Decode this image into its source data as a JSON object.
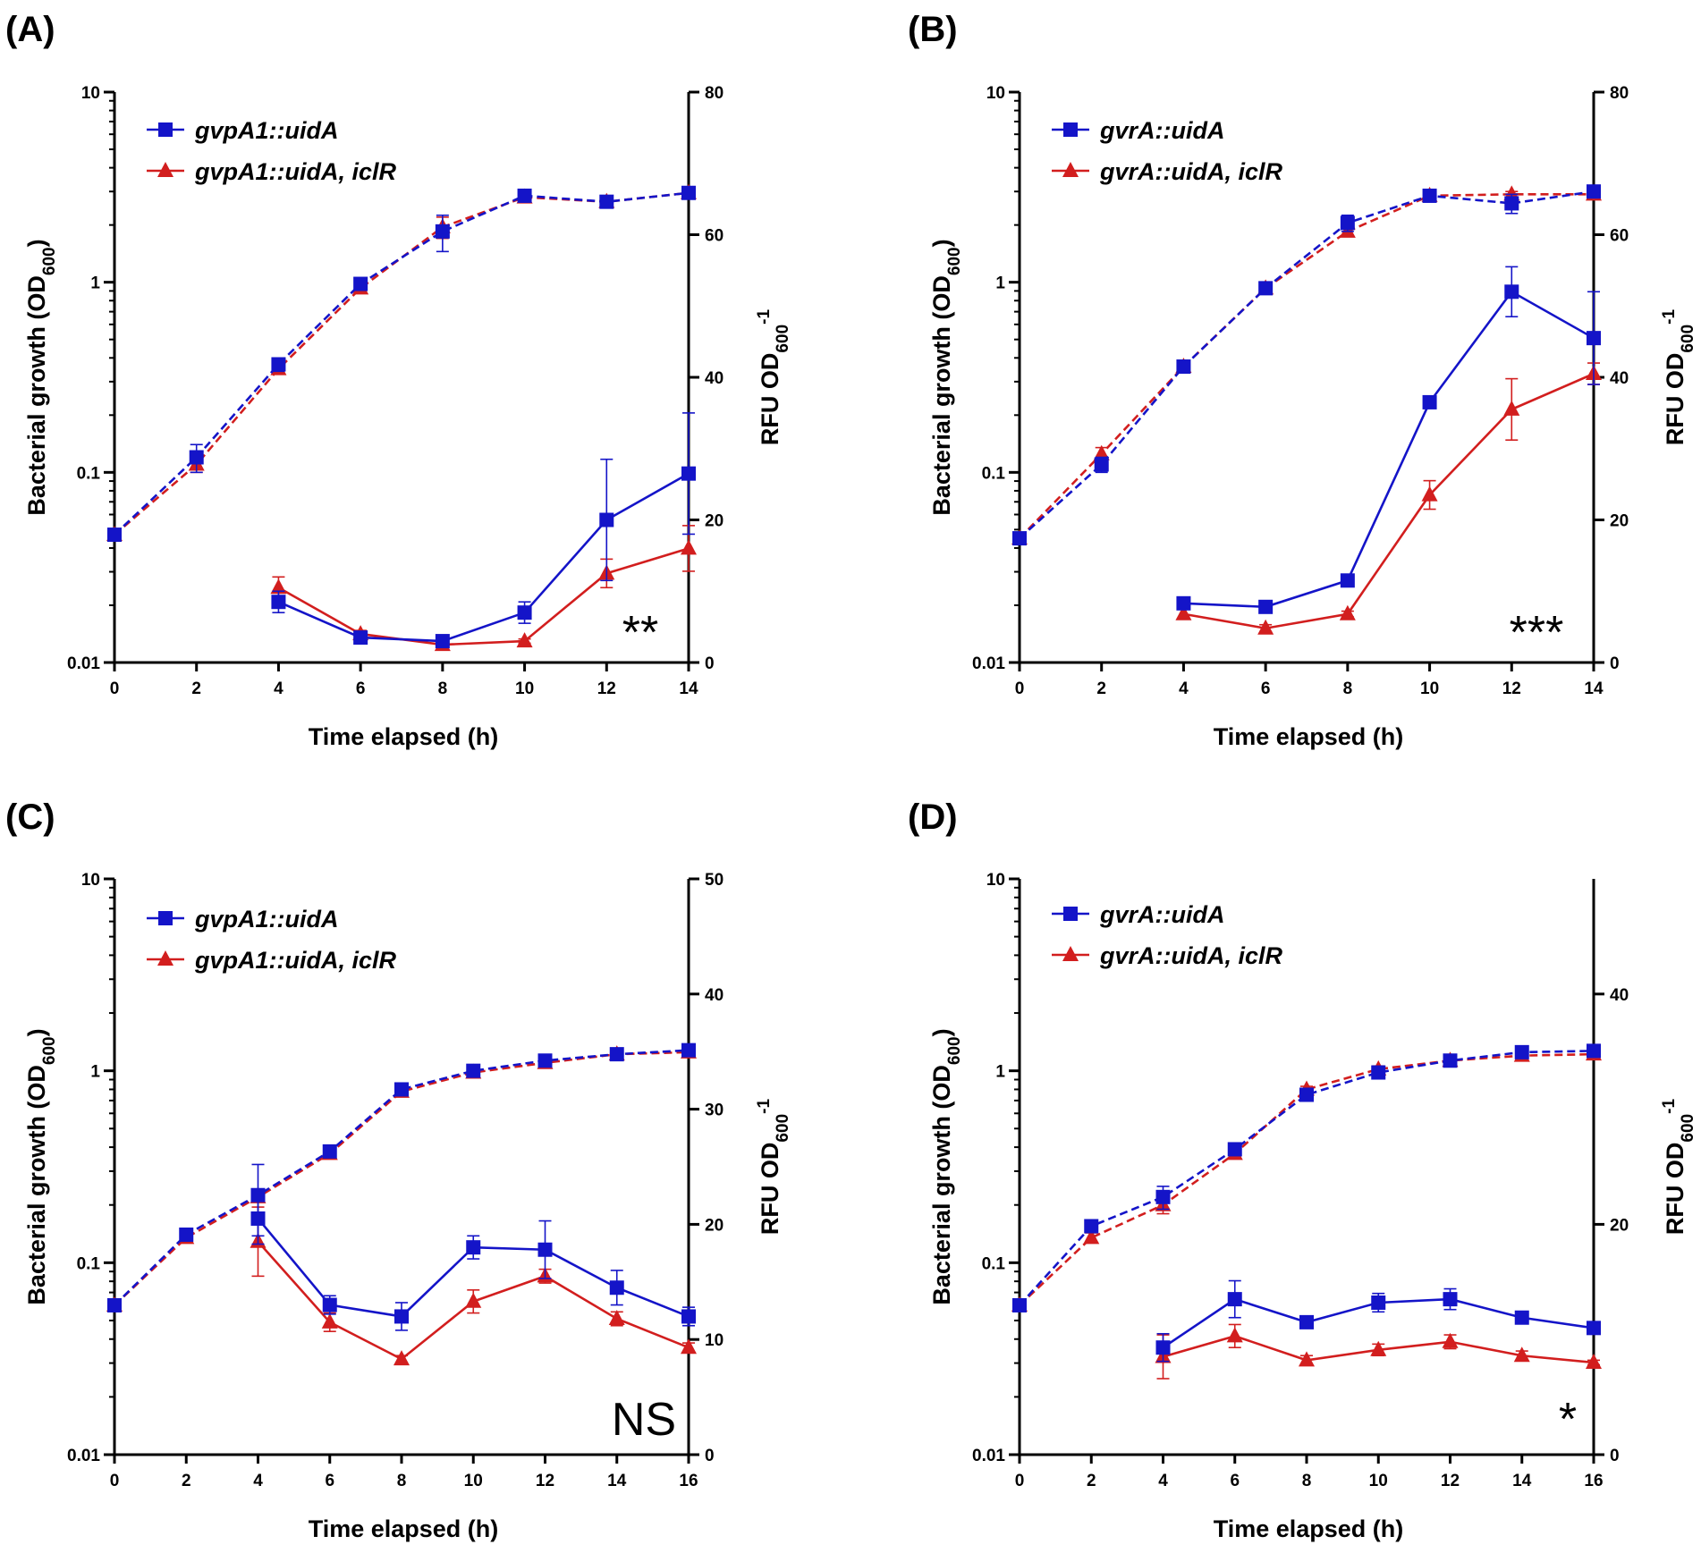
{
  "colors": {
    "gene": "#1414c8",
    "iclr": "#d21e1e",
    "axis": "#000000"
  },
  "chart_data": [
    {
      "panel": "(A)",
      "type": "line",
      "xlabel": "Time elapsed (h)",
      "ylabel_left": "Bacterial growth (OD",
      "ylabel_left_sub": "600",
      "ylabel_left_end": ")",
      "ylabel_right": "RFU OD",
      "ylabel_right_sub": "600",
      "ylabel_right_sup": "-1",
      "x_ticks": [
        0,
        2,
        4,
        6,
        8,
        10,
        12,
        14
      ],
      "x_range": [
        0,
        14
      ],
      "y_left_scale": "log",
      "y_left_range": [
        0.01,
        10
      ],
      "y_left_ticks": [
        "0.01",
        "0.1",
        "1",
        "10"
      ],
      "y_right_range": [
        0,
        80
      ],
      "y_right_ticks": [
        0,
        20,
        40,
        60,
        80
      ],
      "significance": "**",
      "legend": [
        "gvpA1::uidA",
        "gvpA1::uidA, iclR"
      ],
      "series": [
        {
          "name": "gvpA1::uidA",
          "axis": "left",
          "style": "dashed",
          "marker": "square",
          "color_key": "gene",
          "x": [
            0,
            2,
            4,
            6,
            8,
            10,
            12,
            14
          ],
          "values": [
            0.047,
            0.12,
            0.37,
            0.98,
            1.85,
            2.85,
            2.65,
            2.95
          ],
          "err": [
            0.003,
            0.02,
            0.03,
            0.05,
            0.4,
            0.15,
            0.15,
            0.1
          ]
        },
        {
          "name": "gvpA1::uidA, iclR",
          "axis": "left",
          "style": "dashed",
          "marker": "triangle",
          "color_key": "iclr",
          "x": [
            0,
            2,
            4,
            6,
            8,
            10,
            12,
            14
          ],
          "values": [
            0.047,
            0.11,
            0.35,
            0.93,
            1.95,
            2.8,
            2.65,
            2.95
          ],
          "err": [
            0.003,
            0.01,
            0.02,
            0.04,
            0.25,
            0.1,
            0.1,
            0.1
          ]
        },
        {
          "name": "gvpA1::uidA",
          "axis": "right",
          "style": "solid",
          "marker": "square",
          "color_key": "gene",
          "x": [
            4,
            6,
            8,
            10,
            12,
            14
          ],
          "values": [
            8.5,
            3.5,
            3.0,
            7.0,
            20,
            26.5
          ],
          "err": [
            1.5,
            0.6,
            0.6,
            1.5,
            8.5,
            8.5
          ]
        },
        {
          "name": "gvpA1::uidA, iclR",
          "axis": "right",
          "style": "solid",
          "marker": "triangle",
          "color_key": "iclr",
          "x": [
            4,
            6,
            8,
            10,
            12,
            14
          ],
          "values": [
            10.5,
            4.0,
            2.5,
            3.0,
            12.5,
            16
          ],
          "err": [
            1.5,
            0.5,
            0.6,
            0.3,
            2,
            3.2
          ]
        }
      ]
    },
    {
      "panel": "(B)",
      "type": "line",
      "xlabel": "Time elapsed (h)",
      "ylabel_left": "Bacterial growth (OD",
      "ylabel_left_sub": "600",
      "ylabel_left_end": ")",
      "ylabel_right": "RFU OD",
      "ylabel_right_sub": "600",
      "ylabel_right_sup": "-1",
      "x_ticks": [
        0,
        2,
        4,
        6,
        8,
        10,
        12,
        14
      ],
      "x_range": [
        0,
        14
      ],
      "y_left_scale": "log",
      "y_left_range": [
        0.01,
        10
      ],
      "y_left_ticks": [
        "0.01",
        "0.1",
        "1",
        "10"
      ],
      "y_right_range": [
        0,
        80
      ],
      "y_right_ticks": [
        0,
        20,
        40,
        60,
        80
      ],
      "significance": "***",
      "legend": [
        "gvrA::uidA",
        "gvrA::uidA, iclR"
      ],
      "series": [
        {
          "name": "gvrA::uidA",
          "axis": "left",
          "style": "dashed",
          "marker": "square",
          "color_key": "gene",
          "x": [
            0,
            2,
            4,
            6,
            8,
            10,
            12,
            14
          ],
          "values": [
            0.045,
            0.11,
            0.36,
            0.93,
            2.05,
            2.85,
            2.6,
            3.0
          ],
          "err": [
            0.003,
            0.01,
            0.02,
            0.04,
            0.2,
            0.1,
            0.3,
            0.1
          ]
        },
        {
          "name": "gvrA::uidA, iclR",
          "axis": "left",
          "style": "dashed",
          "marker": "triangle",
          "color_key": "iclr",
          "x": [
            0,
            2,
            4,
            6,
            8,
            10,
            12,
            14
          ],
          "values": [
            0.045,
            0.125,
            0.36,
            0.93,
            1.85,
            2.85,
            2.9,
            2.9
          ],
          "err": [
            0.003,
            0.01,
            0.02,
            0.04,
            0.1,
            0.1,
            0.1,
            0.1
          ]
        },
        {
          "name": "gvrA::uidA",
          "axis": "right",
          "style": "solid",
          "marker": "square",
          "color_key": "gene",
          "x": [
            4,
            6,
            8,
            10,
            12,
            14
          ],
          "values": [
            8.3,
            7.8,
            11.5,
            36.5,
            52,
            45.5
          ],
          "err": [
            0.8,
            0.4,
            0.5,
            0.5,
            3.5,
            6.5
          ]
        },
        {
          "name": "gvrA::uidA, iclR",
          "axis": "right",
          "style": "solid",
          "marker": "triangle",
          "color_key": "iclr",
          "x": [
            4,
            6,
            8,
            10,
            12,
            14
          ],
          "values": [
            6.8,
            4.8,
            6.8,
            23.5,
            35.5,
            40.5
          ],
          "err": [
            0.7,
            0.5,
            0.4,
            2,
            4.3,
            1.5
          ]
        }
      ]
    },
    {
      "panel": "(C)",
      "type": "line",
      "xlabel": "Time elapsed (h)",
      "ylabel_left": "Bacterial growth (OD",
      "ylabel_left_sub": "600",
      "ylabel_left_end": ")",
      "ylabel_right": "RFU OD",
      "ylabel_right_sub": "600",
      "ylabel_right_sup": "-1",
      "x_ticks": [
        0,
        2,
        4,
        6,
        8,
        10,
        12,
        14,
        16
      ],
      "x_range": [
        0,
        16
      ],
      "y_left_scale": "log",
      "y_left_range": [
        0.01,
        10
      ],
      "y_left_ticks": [
        "0.01",
        "0.1",
        "1",
        "10"
      ],
      "y_right_range": [
        0,
        50
      ],
      "y_right_ticks": [
        0,
        10,
        20,
        30,
        40,
        50
      ],
      "significance": "NS",
      "legend": [
        "gvpA1::uidA",
        "gvpA1::uidA, iclR"
      ],
      "series": [
        {
          "name": "gvpA1::uidA",
          "axis": "left",
          "style": "dashed",
          "marker": "square",
          "color_key": "gene",
          "x": [
            0,
            2,
            4,
            6,
            8,
            10,
            12,
            14,
            16
          ],
          "values": [
            0.06,
            0.14,
            0.225,
            0.38,
            0.8,
            1.0,
            1.13,
            1.22,
            1.28
          ],
          "err": [
            0.004,
            0.008,
            0.1,
            0.02,
            0.03,
            0.04,
            0.05,
            0.05,
            0.05
          ]
        },
        {
          "name": "gvpA1::uidA, iclR",
          "axis": "left",
          "style": "dashed",
          "marker": "triangle",
          "color_key": "iclr",
          "x": [
            0,
            2,
            4,
            6,
            8,
            10,
            12,
            14,
            16
          ],
          "values": [
            0.06,
            0.135,
            0.22,
            0.37,
            0.78,
            0.98,
            1.1,
            1.22,
            1.25
          ],
          "err": [
            0.004,
            0.008,
            0.01,
            0.02,
            0.03,
            0.04,
            0.05,
            0.05,
            0.05
          ]
        },
        {
          "name": "gvpA1::uidA",
          "axis": "right",
          "style": "solid",
          "marker": "square",
          "color_key": "gene",
          "x": [
            4,
            6,
            8,
            10,
            12,
            14,
            16
          ],
          "values": [
            20.5,
            13,
            12,
            18,
            17.8,
            14.5,
            12
          ],
          "err": [
            1.5,
            0.8,
            1.2,
            1.0,
            2.5,
            1.5,
            0.8
          ]
        },
        {
          "name": "gvpA1::uidA, iclR",
          "axis": "right",
          "style": "solid",
          "marker": "triangle",
          "color_key": "iclr",
          "x": [
            4,
            6,
            8,
            10,
            12,
            14,
            16
          ],
          "values": [
            18.5,
            11.5,
            8.3,
            13.3,
            15.5,
            11.8,
            9.3
          ],
          "err": [
            3,
            0.8,
            0.3,
            1.0,
            0.6,
            0.6,
            0.4
          ]
        }
      ]
    },
    {
      "panel": "(D)",
      "type": "line",
      "xlabel": "Time elapsed (h)",
      "ylabel_left": "Bacterial growth (OD",
      "ylabel_left_sub": "600",
      "ylabel_left_end": ")",
      "ylabel_right": "RFU OD",
      "ylabel_right_sub": "600",
      "ylabel_right_sup": "-1",
      "x_ticks": [
        0,
        2,
        4,
        6,
        8,
        10,
        12,
        14,
        16
      ],
      "x_range": [
        0,
        16
      ],
      "y_left_scale": "log",
      "y_left_range": [
        0.01,
        10
      ],
      "y_left_ticks": [
        "0.01",
        "0.1",
        "1",
        "10"
      ],
      "y_right_range": [
        0,
        50
      ],
      "y_right_ticks": [
        0,
        20,
        40
      ],
      "significance": "*",
      "legend": [
        "gvrA::uidA",
        "gvrA::uidA, iclR"
      ],
      "series": [
        {
          "name": "gvrA::uidA",
          "axis": "left",
          "style": "dashed",
          "marker": "square",
          "color_key": "gene",
          "x": [
            0,
            2,
            4,
            6,
            8,
            10,
            12,
            14,
            16
          ],
          "values": [
            0.06,
            0.155,
            0.22,
            0.39,
            0.75,
            0.98,
            1.13,
            1.25,
            1.27
          ],
          "err": [
            0.004,
            0.008,
            0.03,
            0.02,
            0.03,
            0.04,
            0.05,
            0.05,
            0.05
          ]
        },
        {
          "name": "gvrA::uidA, iclR",
          "axis": "left",
          "style": "dashed",
          "marker": "triangle",
          "color_key": "iclr",
          "x": [
            0,
            2,
            4,
            6,
            8,
            10,
            12,
            14,
            16
          ],
          "values": [
            0.06,
            0.135,
            0.2,
            0.37,
            0.8,
            1.02,
            1.13,
            1.2,
            1.22
          ],
          "err": [
            0.004,
            0.008,
            0.02,
            0.02,
            0.03,
            0.04,
            0.05,
            0.05,
            0.05
          ]
        },
        {
          "name": "gvrA::uidA",
          "axis": "right",
          "style": "solid",
          "marker": "square",
          "color_key": "gene",
          "x": [
            4,
            6,
            8,
            10,
            12,
            14,
            16
          ],
          "values": [
            9.3,
            13.5,
            11.5,
            13.2,
            13.5,
            11.9,
            11.0
          ],
          "err": [
            1.2,
            1.6,
            0.5,
            0.8,
            0.9,
            0.4,
            0.3
          ]
        },
        {
          "name": "gvrA::uidA, iclR",
          "axis": "right",
          "style": "solid",
          "marker": "triangle",
          "color_key": "iclr",
          "x": [
            4,
            6,
            8,
            10,
            12,
            14,
            16
          ],
          "values": [
            8.5,
            10.3,
            8.2,
            9.1,
            9.8,
            8.6,
            8.0
          ],
          "err": [
            1.9,
            1.0,
            0.4,
            0.5,
            0.6,
            0.4,
            0.2
          ]
        }
      ]
    }
  ]
}
